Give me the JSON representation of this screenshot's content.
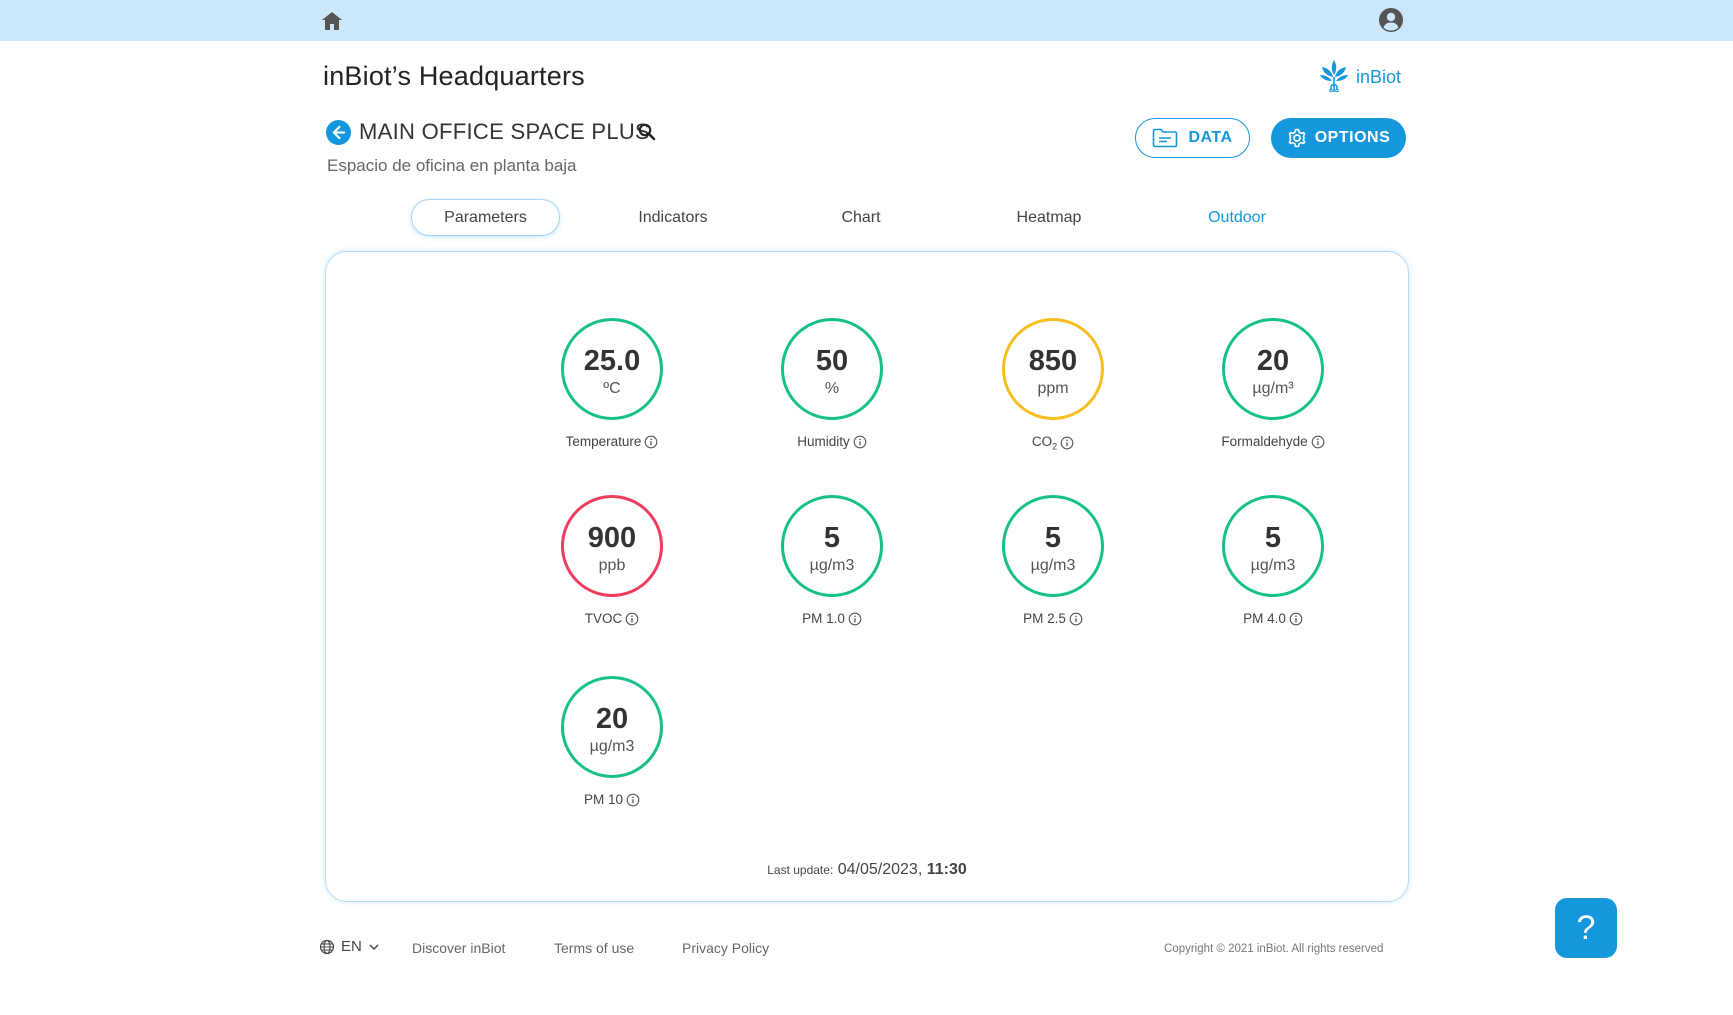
{
  "header": {
    "home_icon": "home-icon",
    "user_icon": "user-account-icon"
  },
  "site": {
    "title": "inBiot’s Headquarters",
    "brand_name": "inBiot"
  },
  "space": {
    "name": "MAIN OFFICE SPACE PLUS",
    "subtitle": "Espacio de oficina en planta baja"
  },
  "actions": {
    "data_label": "DATA",
    "options_label": "OPTIONS"
  },
  "tabs": [
    {
      "label": "Parameters",
      "active": true
    },
    {
      "label": "Indicators",
      "active": false
    },
    {
      "label": "Chart",
      "active": false
    },
    {
      "label": "Heatmap",
      "active": false
    },
    {
      "label": "Outdoor",
      "active": false
    }
  ],
  "gauges": [
    {
      "value": "25.0",
      "unit": "ºC",
      "label": "Temperature",
      "status": "good"
    },
    {
      "value": "50",
      "unit": "%",
      "label": "Humidity",
      "status": "good"
    },
    {
      "value": "850",
      "unit": "ppm",
      "label": "CO",
      "label_sub": "2",
      "status": "warn"
    },
    {
      "value": "20",
      "unit": "µg/m³",
      "label": "Formaldehyde",
      "status": "good"
    },
    {
      "value": "900",
      "unit": "ppb",
      "label": "TVOC",
      "status": "bad"
    },
    {
      "value": "5",
      "unit": "µg/m3",
      "label": "PM 1.0",
      "status": "good"
    },
    {
      "value": "5",
      "unit": "µg/m3",
      "label": "PM 2.5",
      "status": "good"
    },
    {
      "value": "5",
      "unit": "µg/m3",
      "label": "PM 4.0",
      "status": "good"
    },
    {
      "value": "20",
      "unit": "µg/m3",
      "label": "PM 10",
      "status": "good"
    }
  ],
  "last_update": {
    "label": "Last update:",
    "date": "04/05/2023,",
    "time": "11:30"
  },
  "footer": {
    "language": "EN",
    "links": [
      "Discover inBiot",
      "Terms of use",
      "Privacy Policy"
    ],
    "copyright": "Copyright © 2021 inBiot. All rights reserved"
  },
  "help": {
    "label": "?"
  },
  "colors": {
    "accent": "#1597dd",
    "topbar": "#cbe7f9",
    "good": "#15c08a",
    "warn": "#f7be1e",
    "bad": "#ee3b5e"
  }
}
